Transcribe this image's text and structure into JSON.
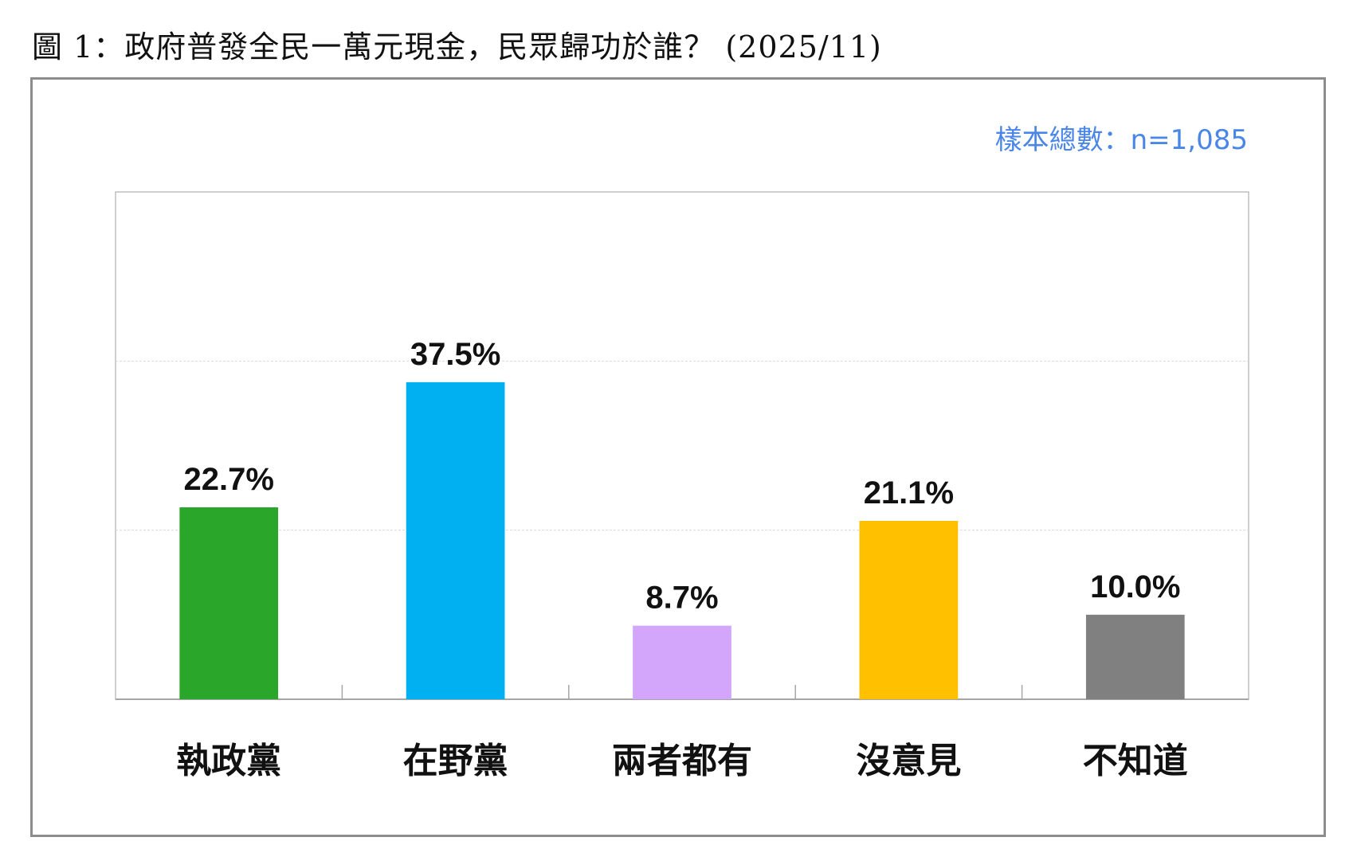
{
  "title": "圖 1：政府普發全民一萬元現金，民眾歸功於誰？ (2025/11)",
  "sample_note": "樣本總數：n=1,085",
  "chart_data": {
    "type": "bar",
    "categories": [
      "執政黨",
      "在野黨",
      "兩者都有",
      "沒意見",
      "不知道"
    ],
    "values": [
      22.7,
      37.5,
      8.7,
      21.1,
      10.0
    ],
    "value_labels": [
      "22.7%",
      "37.5%",
      "8.7%",
      "21.1%",
      "10.0%"
    ],
    "colors": [
      "#2aa72b",
      "#00b0f0",
      "#d3a6fb",
      "#ffc000",
      "#808080"
    ],
    "ylim": [
      0,
      60
    ],
    "yticks": [
      0,
      20,
      40,
      60
    ],
    "grid": true,
    "xlabel": "",
    "ylabel": ""
  }
}
